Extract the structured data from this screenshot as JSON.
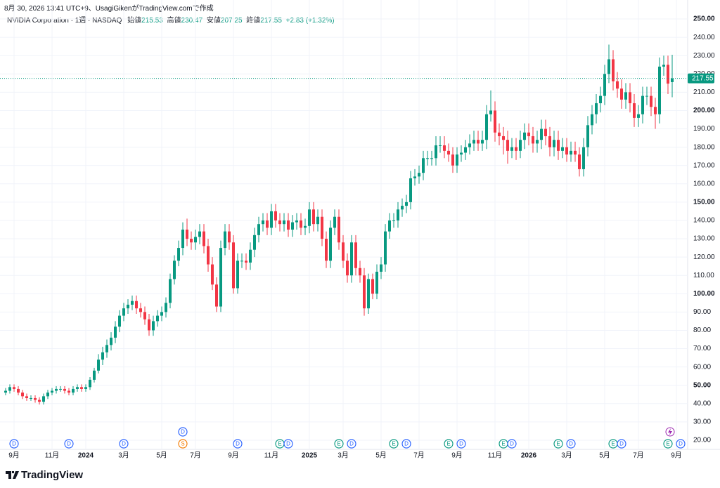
{
  "credit": "8月 30, 2026 13:41 UTC+9、UsagiGikenがTradingView.comで作成",
  "brand": "TradingView",
  "chart_data": {
    "type": "candlestick",
    "title": "NVIDIA Corporation · 1週 · NASDAQ",
    "ohlc_labels": [
      "始値",
      "高値",
      "安値",
      "終値"
    ],
    "change_label": "+2.83 (+1.32%)",
    "up_color": "#089981",
    "down_color": "#f23645",
    "grid": true,
    "open": [
      46,
      47,
      49,
      48,
      46,
      44,
      43,
      43,
      42,
      41,
      44,
      46,
      47,
      48,
      48,
      47,
      46,
      48,
      49,
      48,
      49,
      53,
      58,
      64,
      68,
      72,
      76,
      82,
      88,
      92,
      94,
      96,
      92,
      90,
      86,
      80,
      85,
      88,
      90,
      95,
      108,
      118,
      125,
      135,
      130,
      128,
      131,
      134,
      126,
      116,
      105,
      93,
      125,
      134,
      128,
      103,
      118,
      118,
      117,
      124,
      132,
      138,
      140,
      136,
      145,
      140,
      138,
      140,
      135,
      139,
      140,
      136,
      137,
      146,
      138,
      142,
      130,
      118,
      136,
      142,
      128,
      118,
      110,
      128,
      114,
      110,
      92,
      108,
      100,
      112,
      116,
      134,
      140,
      140,
      146,
      148,
      150,
      163,
      164,
      166,
      174,
      174,
      174,
      181,
      181,
      178,
      176,
      170,
      176,
      177,
      180,
      182,
      184,
      182,
      184,
      198,
      200,
      188,
      186,
      184,
      178,
      180,
      178,
      184,
      188,
      186,
      182,
      184,
      190,
      186,
      180,
      184,
      178,
      180,
      176,
      178,
      176,
      168,
      180,
      192,
      198,
      204,
      208,
      220,
      228,
      216,
      212,
      206,
      210,
      204,
      196,
      198,
      208,
      208,
      202,
      198,
      224,
      225,
      215.53
    ],
    "high": [
      48.5,
      50.5,
      50.5,
      49.5,
      47.5,
      45.5,
      44.5,
      44.5,
      43.5,
      45.5,
      47.5,
      48.5,
      49.5,
      49.5,
      49.5,
      48.5,
      49.5,
      50.5,
      50.5,
      50.5,
      54.5,
      59.5,
      67,
      71,
      75,
      79,
      85,
      91,
      95,
      97,
      99,
      99,
      95,
      93,
      89,
      88,
      91,
      93,
      98,
      111,
      121,
      129,
      139,
      141,
      134,
      135,
      138,
      138,
      130,
      120,
      109,
      129,
      138,
      138,
      132,
      122,
      122,
      122,
      128,
      136,
      142,
      144,
      144,
      149,
      149,
      144,
      144,
      144,
      143,
      144,
      144,
      141,
      150,
      150,
      146,
      146,
      134,
      140,
      146,
      146,
      132,
      122,
      132,
      132,
      118,
      114,
      111,
      111,
      116,
      120,
      138,
      144,
      144,
      150,
      152,
      154,
      167,
      168,
      170,
      178,
      178,
      178,
      186,
      186,
      186,
      182,
      180,
      180,
      181,
      184,
      187,
      189,
      189,
      189,
      203,
      211,
      205,
      193,
      191,
      189,
      185,
      185,
      189,
      193,
      193,
      191,
      189,
      195,
      195,
      191,
      189,
      189,
      185,
      185,
      183,
      183,
      180,
      185,
      197,
      203,
      209,
      213,
      225,
      236,
      233,
      221,
      217,
      215,
      215,
      209,
      203,
      213,
      213,
      213,
      207,
      229,
      230,
      230,
      230.47
    ],
    "low": [
      44.5,
      45.5,
      46.5,
      44.5,
      42.5,
      41.5,
      41.5,
      40.5,
      39.5,
      39.5,
      42.5,
      44.5,
      45.5,
      46.5,
      45.5,
      44.5,
      44.5,
      46.5,
      46.5,
      46.5,
      47.5,
      51.5,
      56.5,
      61,
      65,
      69,
      73,
      79,
      85,
      89,
      91,
      89,
      87,
      83,
      77,
      77,
      82,
      85,
      87,
      92,
      105,
      115,
      121,
      126,
      124,
      124,
      127,
      122,
      112,
      102,
      90,
      90,
      121,
      124,
      100,
      100,
      114,
      113,
      113,
      120,
      128,
      134,
      132,
      132,
      136,
      134,
      134,
      131,
      131,
      135,
      132,
      132,
      133,
      134,
      134,
      126,
      114,
      114,
      132,
      124,
      114,
      106,
      106,
      110,
      106,
      88,
      89,
      97,
      97,
      108,
      112,
      130,
      136,
      136,
      142,
      144,
      146,
      159,
      160,
      162,
      170,
      170,
      170,
      177,
      174,
      172,
      166,
      166,
      172,
      173,
      176,
      178,
      178,
      178,
      179,
      194,
      183,
      181,
      176,
      171,
      174,
      173,
      174,
      179,
      181,
      177,
      177,
      179,
      181,
      175,
      175,
      173,
      174,
      172,
      172,
      172,
      164,
      164,
      175,
      187,
      193,
      199,
      203,
      215,
      211,
      207,
      201,
      201,
      199,
      191,
      191,
      193,
      203,
      197,
      190,
      193,
      219,
      209,
      207.25
    ],
    "close": [
      47,
      49,
      48,
      46,
      44,
      43,
      43,
      42,
      41,
      44,
      46,
      47,
      48,
      48,
      47,
      46,
      48,
      49,
      48,
      49,
      53,
      58,
      64,
      68,
      72,
      76,
      82,
      88,
      92,
      94,
      96,
      92,
      90,
      86,
      80,
      85,
      88,
      90,
      95,
      108,
      118,
      125,
      135,
      130,
      128,
      131,
      134,
      126,
      116,
      105,
      93,
      125,
      134,
      128,
      103,
      118,
      118,
      117,
      124,
      132,
      138,
      140,
      136,
      145,
      140,
      138,
      140,
      135,
      139,
      140,
      136,
      137,
      146,
      138,
      142,
      130,
      118,
      136,
      142,
      128,
      118,
      110,
      128,
      114,
      110,
      92,
      108,
      100,
      112,
      116,
      134,
      140,
      140,
      146,
      148,
      150,
      163,
      164,
      166,
      174,
      174,
      174,
      181,
      181,
      178,
      176,
      170,
      176,
      177,
      180,
      182,
      184,
      182,
      184,
      198,
      200,
      188,
      186,
      184,
      178,
      180,
      178,
      184,
      188,
      186,
      182,
      184,
      190,
      186,
      180,
      184,
      178,
      180,
      176,
      178,
      176,
      168,
      180,
      192,
      198,
      204,
      208,
      220,
      228,
      216,
      212,
      206,
      210,
      204,
      196,
      198,
      208,
      208,
      202,
      198,
      224,
      225,
      214.72,
      217.55
    ],
    "ylim": [
      15,
      255
    ],
    "yticks": [
      {
        "value": 20,
        "label": "20.00"
      },
      {
        "value": 30,
        "label": "30.00"
      },
      {
        "value": 40,
        "label": "40.00"
      },
      {
        "value": 50,
        "label": "50.00"
      },
      {
        "value": 60,
        "label": "60.00"
      },
      {
        "value": 70,
        "label": "70.00"
      },
      {
        "value": 80,
        "label": "80.00"
      },
      {
        "value": 90,
        "label": "90.00"
      },
      {
        "value": 100,
        "label": "100.00"
      },
      {
        "value": 110,
        "label": "110.00"
      },
      {
        "value": 120,
        "label": "120.00"
      },
      {
        "value": 130,
        "label": "130.00"
      },
      {
        "value": 140,
        "label": "140.00"
      },
      {
        "value": 150,
        "label": "150.00"
      },
      {
        "value": 160,
        "label": "160.00"
      },
      {
        "value": 170,
        "label": "170.00"
      },
      {
        "value": 180,
        "label": "180.00"
      },
      {
        "value": 190,
        "label": "190.00"
      },
      {
        "value": 200,
        "label": "200.00"
      },
      {
        "value": 210,
        "label": "210.00"
      },
      {
        "value": 220,
        "label": "220.00"
      },
      {
        "value": 230,
        "label": "230.00"
      },
      {
        "value": 240,
        "label": "240.00"
      },
      {
        "value": 250,
        "label": "250.00"
      }
    ],
    "xticks": [
      {
        "value": 2,
        "label": "9月"
      },
      {
        "value": 11,
        "label": "11月"
      },
      {
        "value": 19,
        "label": "2024"
      },
      {
        "value": 28,
        "label": "3月"
      },
      {
        "value": 37,
        "label": "5月"
      },
      {
        "value": 45,
        "label": "7月"
      },
      {
        "value": 54,
        "label": "9月"
      },
      {
        "value": 63,
        "label": "11月"
      },
      {
        "value": 72,
        "label": "2025"
      },
      {
        "value": 80,
        "label": "3月"
      },
      {
        "value": 89,
        "label": "5月"
      },
      {
        "value": 98,
        "label": "7月"
      },
      {
        "value": 107,
        "label": "9月"
      },
      {
        "value": 116,
        "label": "11月"
      },
      {
        "value": 124,
        "label": "2026"
      },
      {
        "value": 133,
        "label": "3月"
      },
      {
        "value": 142,
        "label": "5月"
      },
      {
        "value": 150,
        "label": "7月"
      },
      {
        "value": 159,
        "label": "9月"
      }
    ],
    "events": [
      {
        "label": "D",
        "at": 2,
        "color": "#2962ff"
      },
      {
        "label": "D",
        "at": 15,
        "color": "#2962ff"
      },
      {
        "label": "D",
        "at": 28,
        "color": "#2962ff"
      },
      {
        "label": "S",
        "at": 42,
        "color": "#f57c00"
      },
      {
        "label": "D",
        "at": 42,
        "color": "#2962ff"
      },
      {
        "label": "D",
        "at": 55,
        "color": "#2962ff"
      },
      {
        "label": "E",
        "at": 65,
        "color": "#089981"
      },
      {
        "label": "D",
        "at": 67,
        "color": "#2962ff"
      },
      {
        "label": "E",
        "at": 79,
        "color": "#089981"
      },
      {
        "label": "D",
        "at": 82,
        "color": "#2962ff"
      },
      {
        "label": "E",
        "at": 92,
        "color": "#089981"
      },
      {
        "label": "D",
        "at": 95,
        "color": "#2962ff"
      },
      {
        "label": "E",
        "at": 105,
        "color": "#089981"
      },
      {
        "label": "D",
        "at": 108,
        "color": "#2962ff"
      },
      {
        "label": "E",
        "at": 118,
        "color": "#089981"
      },
      {
        "label": "D",
        "at": 120,
        "color": "#2962ff"
      },
      {
        "label": "E",
        "at": 131,
        "color": "#089981"
      },
      {
        "label": "D",
        "at": 134,
        "color": "#2962ff"
      },
      {
        "label": "E",
        "at": 144,
        "color": "#089981"
      },
      {
        "label": "D",
        "at": 146,
        "color": "#2962ff"
      },
      {
        "label": "E",
        "at": 157,
        "color": "#089981"
      },
      {
        "label": "D",
        "at": 160,
        "color": "#2962ff"
      }
    ]
  }
}
